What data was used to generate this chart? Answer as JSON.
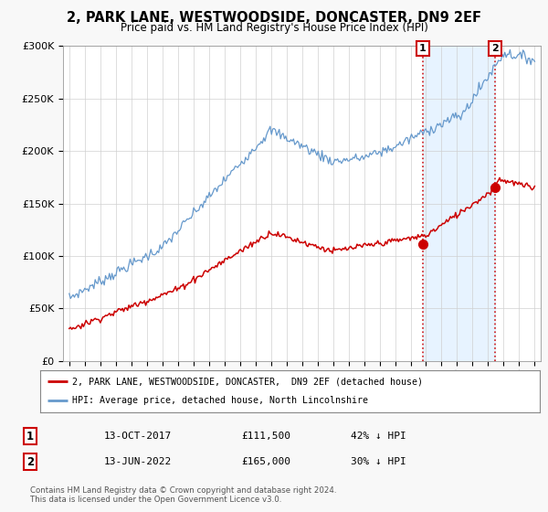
{
  "title": "2, PARK LANE, WESTWOODSIDE, DONCASTER, DN9 2EF",
  "subtitle": "Price paid vs. HM Land Registry's House Price Index (HPI)",
  "legend_line1": "2, PARK LANE, WESTWOODSIDE, DONCASTER,  DN9 2EF (detached house)",
  "legend_line2": "HPI: Average price, detached house, North Lincolnshire",
  "transaction1_date": "13-OCT-2017",
  "transaction1_price": 111500,
  "transaction1_label": "42% ↓ HPI",
  "transaction2_date": "13-JUN-2022",
  "transaction2_price": 165000,
  "transaction2_label": "30% ↓ HPI",
  "footnote": "Contains HM Land Registry data © Crown copyright and database right 2024.\nThis data is licensed under the Open Government Licence v3.0.",
  "line_color_red": "#cc0000",
  "line_color_blue": "#6699cc",
  "background_color": "#f8f8f8",
  "plot_bg_color": "#ffffff",
  "shade_color": "#ddeeff",
  "ylim": [
    0,
    300000
  ],
  "yticks": [
    0,
    50000,
    100000,
    150000,
    200000,
    250000,
    300000
  ],
  "t1_year": 2017.79,
  "t2_year": 2022.46
}
